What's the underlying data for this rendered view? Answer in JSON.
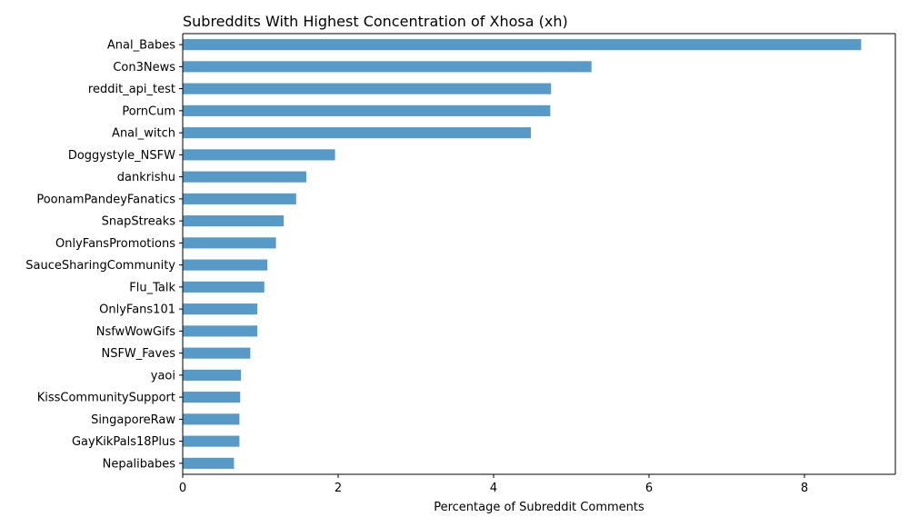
{
  "chart_data": {
    "type": "bar",
    "orientation": "horizontal",
    "title": "Subreddits With Highest Concentration of Xhosa (xh)",
    "xlabel": "Percentage of Subreddit Comments",
    "ylabel": "",
    "xlim": [
      0,
      9.17
    ],
    "xticks": [
      0,
      2,
      4,
      6,
      8
    ],
    "grid": false,
    "bar_color": "#5799c7",
    "categories": [
      "Anal_Babes",
      "Con3News",
      "reddit_api_test",
      "PornCum",
      "Anal_witch",
      "Doggystyle_NSFW",
      "dankrishu",
      "PoonamPandeyFanatics",
      "SnapStreaks",
      "OnlyFansPromotions",
      "SauceSharingCommunity",
      "Flu_Talk",
      "OnlyFans101",
      "NsfwWowGifs",
      "NSFW_Faves",
      "yaoi",
      "KissCommunitySupport",
      "SingaporeRaw",
      "GayKikPals18Plus",
      "Nepalibabes"
    ],
    "values": [
      8.73,
      5.26,
      4.74,
      4.73,
      4.48,
      1.96,
      1.59,
      1.46,
      1.3,
      1.2,
      1.09,
      1.05,
      0.96,
      0.96,
      0.87,
      0.75,
      0.74,
      0.73,
      0.73,
      0.66
    ]
  }
}
